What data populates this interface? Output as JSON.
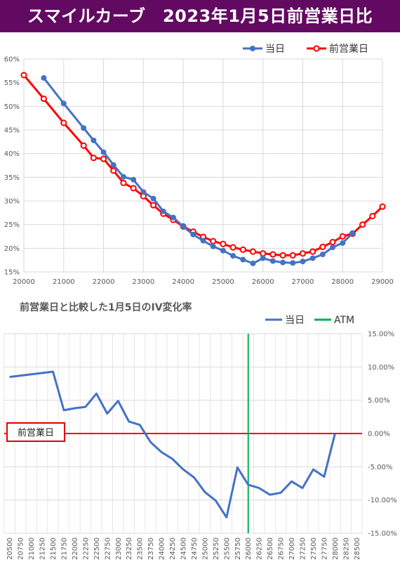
{
  "header": {
    "title": "スマイルカーブ　2023年1月5日前営業日比"
  },
  "chart_data": [
    {
      "type": "line",
      "title": "",
      "xlabel": "",
      "ylabel": "",
      "xlim": [
        20000,
        29000
      ],
      "ylim": [
        15,
        60
      ],
      "x_ticks": [
        "20000",
        "21000",
        "22000",
        "23000",
        "24000",
        "25000",
        "26000",
        "27000",
        "28000",
        "29000"
      ],
      "y_ticks": [
        "15%",
        "20%",
        "25%",
        "30%",
        "35%",
        "40%",
        "45%",
        "50%",
        "55%",
        "60%"
      ],
      "grid": true,
      "legend_position": "top-right",
      "series": [
        {
          "name": "当日",
          "color": "#4472c4",
          "x": [
            20500,
            21000,
            21500,
            21750,
            22000,
            22250,
            22500,
            22750,
            23000,
            23250,
            23500,
            23750,
            24000,
            24250,
            24500,
            24750,
            25000,
            25250,
            25500,
            25750,
            26000,
            26250,
            26500,
            26750,
            27000,
            27250,
            27500,
            27750,
            28000,
            28250
          ],
          "y": [
            56,
            50.6,
            45.4,
            42.8,
            40.3,
            37.6,
            35.1,
            34.5,
            31.9,
            30.5,
            27.8,
            26.5,
            24.6,
            22.9,
            21.6,
            20.4,
            19.5,
            18.4,
            17.6,
            16.8,
            17.9,
            17.3,
            17.0,
            16.9,
            17.2,
            17.9,
            18.7,
            20.2,
            21.1,
            23.2
          ]
        },
        {
          "name": "前営業日",
          "color": "#ff0000",
          "x": [
            20000,
            20500,
            21000,
            21500,
            21750,
            22000,
            22250,
            22500,
            22750,
            23000,
            23250,
            23500,
            23750,
            24000,
            24250,
            24500,
            24750,
            25000,
            25250,
            25500,
            25750,
            26000,
            26250,
            26500,
            26750,
            27000,
            27250,
            27500,
            27750,
            28000,
            28250,
            28500,
            28750,
            29000
          ],
          "y": [
            56.6,
            51.6,
            46.5,
            41.7,
            39.1,
            38.9,
            36.4,
            33.8,
            32.7,
            31.0,
            29.1,
            27.3,
            26.0,
            24.6,
            23.5,
            22.4,
            21.5,
            20.9,
            20.2,
            19.7,
            19.3,
            18.9,
            18.7,
            18.5,
            18.5,
            18.9,
            19.3,
            20.3,
            21.3,
            22.5,
            23.1,
            25.0,
            26.8,
            28.8
          ]
        }
      ]
    },
    {
      "type": "line",
      "title": "前営業日と比較した1月5日のIV変化率",
      "xlabel": "",
      "ylabel": "",
      "ylim": [
        -15,
        15
      ],
      "y_ticks": [
        "15.00%",
        "10.00%",
        "5.00%",
        "0.00%",
        "-5.00%",
        "-10.00%",
        "-15.00%"
      ],
      "categories": [
        "20500",
        "20750",
        "21000",
        "21250",
        "21500",
        "21750",
        "22000",
        "22250",
        "22500",
        "22750",
        "23000",
        "23250",
        "23500",
        "23750",
        "24000",
        "24250",
        "24500",
        "24750",
        "25000",
        "25250",
        "25500",
        "25750",
        "26000",
        "26250",
        "26500",
        "26750",
        "27000",
        "27250",
        "27500",
        "27750",
        "28000",
        "28250",
        "28500"
      ],
      "grid": true,
      "legend_position": "top-right",
      "series": [
        {
          "name": "当日",
          "color": "#4472c4",
          "values": [
            8.5,
            8.7,
            8.9,
            9.1,
            9.3,
            3.5,
            3.8,
            4.0,
            6.0,
            3.0,
            4.9,
            1.8,
            1.3,
            -1.3,
            -2.8,
            -3.8,
            -5.4,
            -6.6,
            -8.8,
            -10.1,
            -12.6,
            -5.1,
            -7.7,
            -8.2,
            -9.2,
            -8.9,
            -7.2,
            -8.2,
            -5.4,
            -6.5,
            0.0,
            null,
            null
          ]
        }
      ],
      "atm_line": {
        "name": "ATM",
        "color": "#00b050",
        "category": "26000"
      },
      "baseline": {
        "label": "前営業日",
        "color": "#ff0000",
        "value": 0
      }
    }
  ]
}
